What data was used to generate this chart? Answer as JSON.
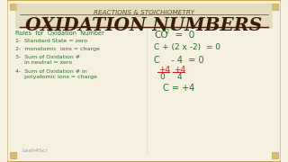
{
  "bg_color": "#f5f0e0",
  "top_banner_color": "#d4c9a0",
  "title_text": "OXIDATION NUMBERS",
  "subtitle_text": "REACTIONS & STOICHIOMETRY",
  "title_color": "#3d1a0a",
  "subtitle_color": "#5a4a3a",
  "left_color": "#2a6e2a",
  "right_color": "#2a6e2a",
  "red_color": "#cc2222",
  "watermark": "Leah4Sci",
  "rules_header": "Rules  for  Oxidation  Number",
  "rule1": "1-  Standard State = zero",
  "rule2": "2-  monatomic  ions = charge",
  "rule3a": "3-  Sum of Oxidation #",
  "rule3b": "     in neutral = zero",
  "rule4a": "4-  Sum of Oxidation # in",
  "rule4b": "     polyatomic ions = charge",
  "corner_color": "#c8a84b"
}
